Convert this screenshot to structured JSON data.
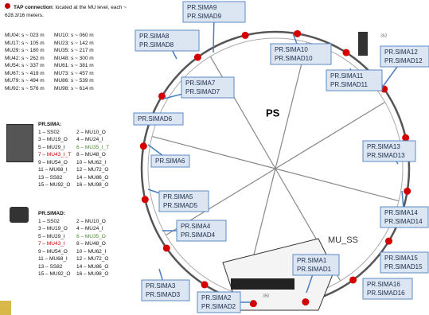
{
  "legend": {
    "title": "TAP connection",
    "text": ": located at the MU level, each ~ 628.3/16 meters."
  },
  "mu_positions": {
    "rows": [
      [
        "MU04: s ~ 023 m",
        "MU10: s ~ 060 m"
      ],
      [
        "MU17: s ~ 105 m",
        "MU23: s ~ 142 m"
      ],
      [
        "MU29: s ~ 180 m",
        "MU35: s ~ 217 m"
      ],
      [
        "MU42: s ~ 262 m",
        "MU48: s ~ 300 m"
      ],
      [
        "MU54: s ~ 337 m",
        "MU61: s ~ 381 m"
      ],
      [
        "MU67: s ~ 419 m",
        "MU73: s ~ 457 m"
      ],
      [
        "MU79: s ~ 494 m",
        "MU86: s ~ 539 m"
      ],
      [
        "MU92: s ~ 576 m",
        "MU98: s ~ 614 m"
      ]
    ]
  },
  "pr_sima": {
    "title": "PR.SIMA:",
    "items": [
      "1 – SS02",
      "2 – MU10_O",
      "3 – MU19_O",
      "4 – MU24_I",
      "5 – MU29_I",
      "6 – MU35_I_T",
      "7 – MU43_I_T",
      "8 – MU48_O",
      "9 – MU54_O",
      "10 – MU62_I",
      "11 – MU68_I",
      "12 – MU72_O",
      "13 – SS82",
      "14 – MU86_O",
      "15 – MU92_O",
      "16 – MU98_O"
    ]
  },
  "pr_simad": {
    "title": "PR.SIMAD:",
    "items": [
      "1 – SS02",
      "2 – MU10_O",
      "3 – MU19_O",
      "4 – MU24_I",
      "5 – MU29_I",
      "6 – MU35_O",
      "7 – MU43_I",
      "8 – MU48_O",
      "9 – MU54_O",
      "10 – MU62_I",
      "11 – MU68_I",
      "12 – MU72_O",
      "13 – SS82",
      "14 – MU86_O",
      "15 – MU92_O",
      "16 – MU98_O"
    ]
  },
  "map": {
    "center_label": "PS",
    "mu_ss": "MU_SS",
    "numbers": [
      "352",
      "350"
    ],
    "boxes": [
      [
        "PR.SIMA9",
        "PR.SIMAD9"
      ],
      [
        "PR.SIMA8",
        "PR.SIMAD8"
      ],
      [
        "PR.SIMA10",
        "PR.SIMAD10"
      ],
      [
        "PR.SIMA12",
        "PR.SIMAD12"
      ],
      [
        "PR.SIMA11",
        "PR.SIMAD11"
      ],
      [
        "PR.SIMA7",
        "PR.SIMAD7"
      ],
      [
        "PR.SIMAD6"
      ],
      [
        "PR.SIMA6"
      ],
      [
        "PR.SIMA13",
        "PR.SIMAD13"
      ],
      [
        "PR.SIMA5",
        "PR.SIMAD5"
      ],
      [
        "PR.SIMA14",
        "PR.SIMAD14"
      ],
      [
        "PR.SIMA4",
        "PR.SIMAD4"
      ],
      [
        "PR.SIMA15",
        "PR.SIMAD15"
      ],
      [
        "PR.SIMA1",
        "PR.SIMAD1"
      ],
      [
        "PR.SIMA16",
        "PR.SIMAD16"
      ],
      [
        "PR.SIMA3",
        "PR.SIMAD3"
      ],
      [
        "PR.SIMA2",
        "PR.SIMAD2"
      ]
    ]
  }
}
